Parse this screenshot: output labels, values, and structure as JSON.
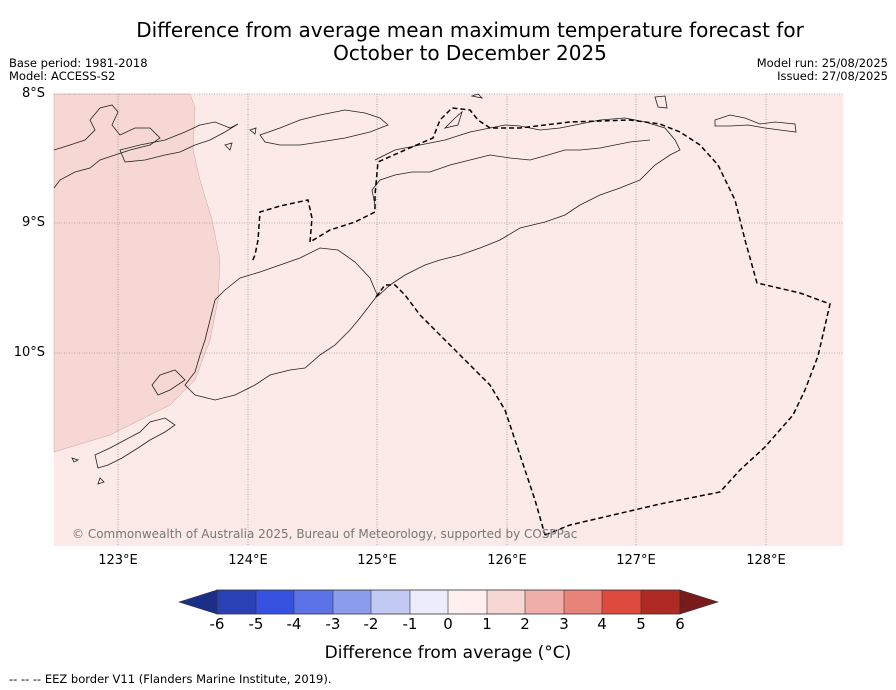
{
  "title_line1": "Difference from average mean maximum temperature forecast for",
  "title_line2": "October to December 2025",
  "base_period": "Base period: 1981-2018",
  "model": "Model: ACCESS-S2",
  "model_run": "Model run: 25/08/2025",
  "issued": "Issued: 27/08/2025",
  "lat_labels": [
    "8°S",
    "9°S",
    "10°S"
  ],
  "lon_labels": [
    "123°E",
    "124°E",
    "125°E",
    "126°E",
    "127°E",
    "128°E"
  ],
  "copyright": "© Commonwealth of Australia 2025, Bureau of Meteorology, supported by COSPPac",
  "colorbar": {
    "label": "Difference from average (°C)",
    "ticks": [
      "-6",
      "-5",
      "-4",
      "-3",
      "-2",
      "-1",
      "0",
      "1",
      "2",
      "3",
      "4",
      "5",
      "6"
    ],
    "colors": [
      "#1c2f88",
      "#2a41b6",
      "#3551e0",
      "#5b73e6",
      "#8a9ceb",
      "#c2caf4",
      "#ebedfb",
      "#fdf0ee",
      "#f6d7d3",
      "#efaeaa",
      "#e88379",
      "#df4a3f",
      "#ae2a22",
      "#7a1a1b"
    ]
  },
  "map": {
    "fill_main_class": "0 to 1",
    "fill_main_color": "#fbeae8",
    "fill_west_class": "1 to 2",
    "fill_west_color": "#f6d7d3",
    "legend_line": "EEZ border V11 (Flanders Marine Institute, 2019)."
  },
  "footer": "--  --  -- EEZ border V11 (Flanders Marine Institute, 2019)."
}
